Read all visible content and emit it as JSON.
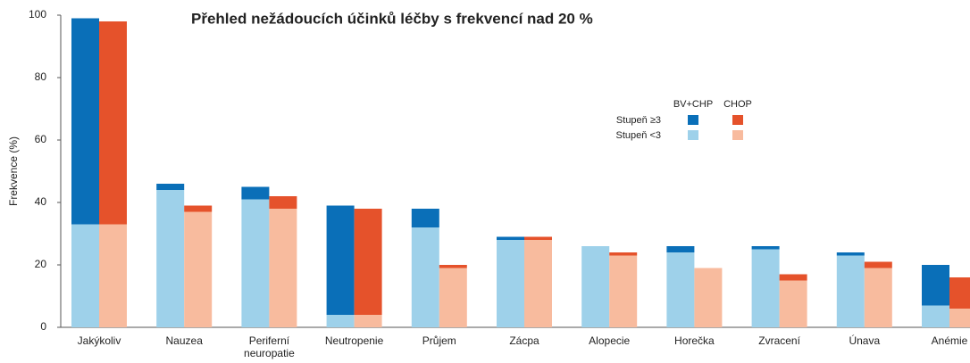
{
  "chart_data": {
    "type": "grouped-stacked-bar",
    "title": "Přehled nežádoucích účinků léčby s frekvencí nad 20 %",
    "y_label": "Frekvence (%)",
    "categories": [
      [
        "Jakýkoliv"
      ],
      [
        "Nauzea"
      ],
      [
        "Periferní",
        "neuropatie"
      ],
      [
        "Neutropenie"
      ],
      [
        "Průjem"
      ],
      [
        "Zácpa"
      ],
      [
        "Alopecie"
      ],
      [
        "Horečka"
      ],
      [
        "Zvracení"
      ],
      [
        "Únava"
      ],
      [
        "Anémie"
      ]
    ],
    "grades": [
      "Stupeň ≥3",
      "Stupeň <3"
    ],
    "groups": [
      {
        "name": "BV+CHP",
        "segments": [
          {
            "color": "#0a6fb8",
            "values": [
              66,
              2,
              4,
              35,
              6,
              1,
              0,
              2,
              1,
              1,
              13
            ]
          },
          {
            "color": "#9ed1ea",
            "values": [
              33,
              44,
              41,
              4,
              32,
              28,
              26,
              24,
              25,
              23,
              7
            ]
          }
        ]
      },
      {
        "name": "CHOP",
        "segments": [
          {
            "color": "#e5522b",
            "values": [
              65,
              2,
              4,
              34,
              1,
              1,
              1,
              0,
              2,
              2,
              10
            ]
          },
          {
            "color": "#f8bb9e",
            "values": [
              33,
              37,
              38,
              4,
              19,
              28,
              23,
              19,
              15,
              19,
              6
            ]
          }
        ]
      }
    ],
    "ylim": [
      0,
      100
    ],
    "yticks": [
      0,
      20,
      40,
      60,
      80,
      100
    ],
    "grid": false
  }
}
